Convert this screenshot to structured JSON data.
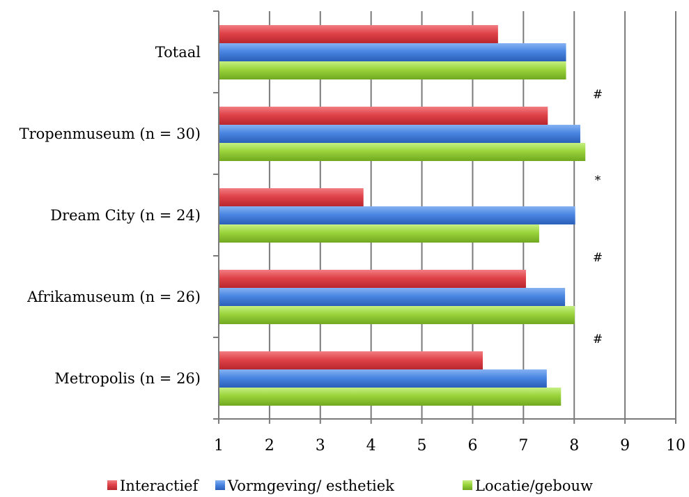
{
  "chart_data": {
    "type": "bar",
    "orientation": "horizontal",
    "categories": [
      "Metropolis (n = 26)",
      "Afrikamuseum (n = 26)",
      "Dream City (n = 24)",
      "Tropenmuseum (n = 30)",
      "Totaal"
    ],
    "series": [
      {
        "name": "Interactief",
        "color": "#e0434a",
        "values": [
          6.2,
          7.05,
          3.85,
          7.48,
          6.5
        ]
      },
      {
        "name": "Vormgeving/ esthetiek",
        "color": "#4a86e2",
        "values": [
          7.46,
          7.82,
          8.02,
          8.12,
          7.84
        ]
      },
      {
        "name": "Locatie/gebouw",
        "color": "#9ad43c",
        "values": [
          7.74,
          8.01,
          7.31,
          8.22,
          7.84
        ]
      }
    ],
    "xlim": [
      1,
      10
    ],
    "xticks": [
      "1",
      "2",
      "3",
      "4",
      "5",
      "6",
      "7",
      "8",
      "9",
      "10"
    ],
    "annotations": [
      {
        "category": "Metropolis (n = 26)",
        "text": "#"
      },
      {
        "category": "Afrikamuseum (n = 26)",
        "text": "#"
      },
      {
        "category": "Dream City (n = 24)",
        "text": "*"
      },
      {
        "category": "Tropenmuseum (n = 30)",
        "text": "#"
      }
    ],
    "grid": "vertical",
    "legend": "bottom"
  }
}
